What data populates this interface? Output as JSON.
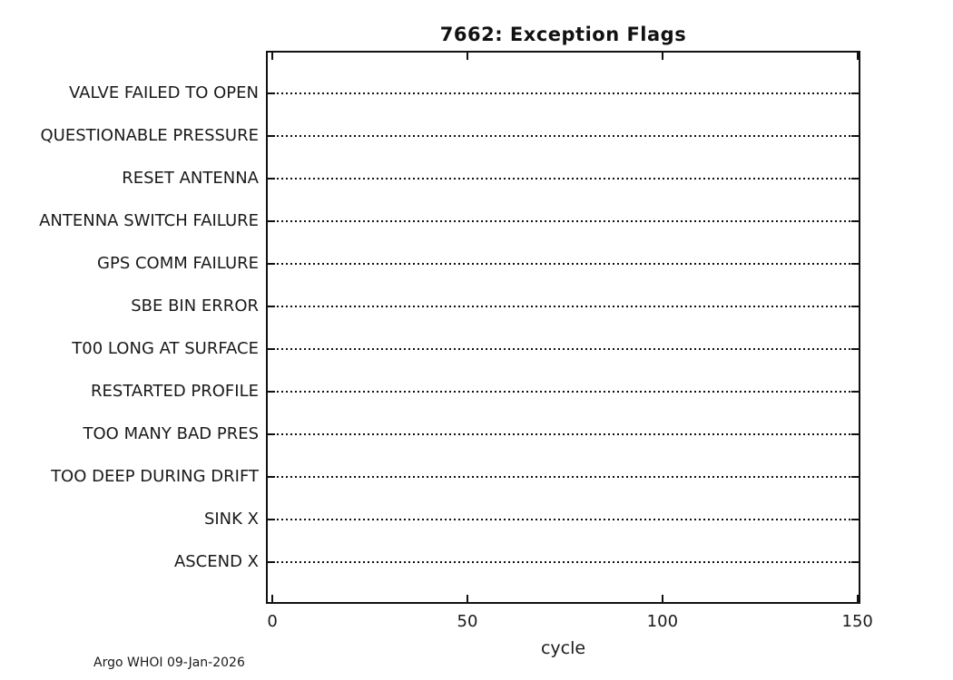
{
  "figure": {
    "title": "7662: Exception Flags",
    "footer_credit": "Argo WHOI 09-Jan-2026"
  },
  "colors": {
    "background": "#ffffff",
    "axis": "#111111",
    "text": "#1a1a1a"
  },
  "chart_data": {
    "type": "scatter",
    "title": "7662: Exception Flags",
    "xlabel": "cycle",
    "ylabel": "",
    "categories": [
      "VALVE FAILED TO OPEN",
      "QUESTIONABLE PRESSURE",
      "RESET ANTENNA",
      "ANTENNA SWITCH FAILURE",
      "GPS COMM FAILURE",
      "SBE BIN ERROR",
      "T00 LONG AT SURFACE",
      "RESTARTED PROFILE",
      "TOO MANY BAD PRES",
      "TOO DEEP DURING DRIFT",
      "SINK X",
      "ASCEND X"
    ],
    "x_ticks": [
      0,
      50,
      100,
      150
    ],
    "xlim": [
      -1.2,
      150.3
    ],
    "series": [],
    "points_plotted": "none - no exception flag events are marked on any category row",
    "grid": "horizontal dotted black line across plot for each category, with inward tick marks on left and right axes",
    "legend": "none",
    "box": "on",
    "annotations": [
      "Argo WHOI 09-Jan-2026"
    ]
  }
}
